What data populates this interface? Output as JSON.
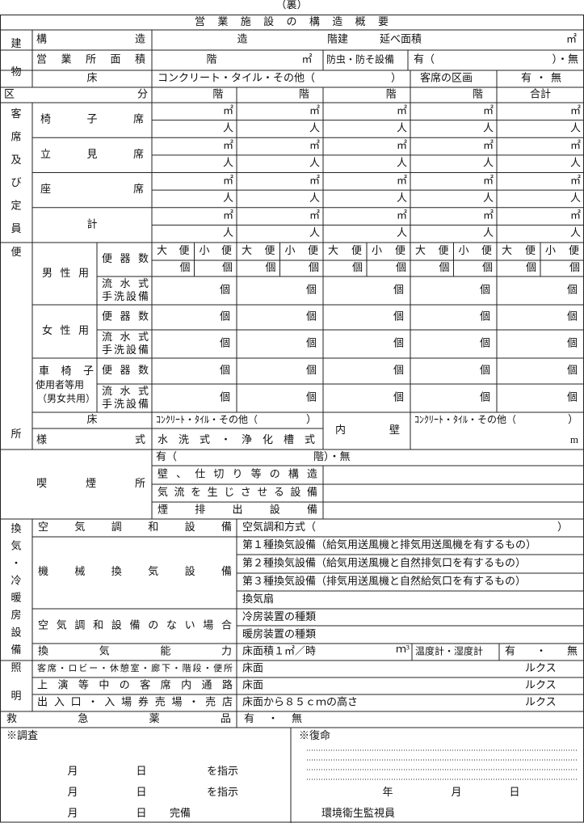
{
  "header": {
    "page_label": "（裏）",
    "title": "営業施設の構造概要"
  },
  "building": {
    "label": [
      "建",
      "物"
    ],
    "structure": "構造",
    "structure_made": "造",
    "floors": "階建",
    "total_area": "延べ面積",
    "area_unit": "㎡",
    "office_area": "営業所面積",
    "office_floor": "階",
    "office_unit": "㎡",
    "pest": "防虫・防そ設備",
    "pest_value": "有（",
    "pest_value_end": "）・無",
    "floor": "床",
    "floor_value": "コンクリート・タイル・その他（",
    "floor_value_end": "）",
    "seat_division": "客席の区画",
    "seat_division_value": "有・無"
  },
  "seating": {
    "division": "区分",
    "floor_headers": [
      "階",
      "階",
      "階",
      "階"
    ],
    "total_header": "合計",
    "label": [
      "客",
      "席",
      "及",
      "び",
      "定",
      "員"
    ],
    "rows": [
      "椅子席",
      "立見席",
      "座席",
      "計"
    ],
    "area_unit": "㎡",
    "person_unit": "人"
  },
  "toilet": {
    "label": [
      "便",
      "所"
    ],
    "male": "男性用",
    "female": "女性用",
    "wheelchair": [
      "車椅子",
      "使用者等用",
      "（男女共用）"
    ],
    "bowl_count": "便器数",
    "handwash": [
      "流水式",
      "手洗設備"
    ],
    "large": "大便",
    "small": "小便",
    "count_unit": "個",
    "floor": "床",
    "floor_value": "ｺﾝｸﾘｰﾄ・ﾀｲﾙ・その他（",
    "floor_value_end": "）",
    "inner_wall": "内壁",
    "wall_value": "ｺﾝｸﾘｰﾄ・ﾀｲﾙ・その他（",
    "wall_value_end": "）",
    "wall_unit": "m",
    "style": "様式",
    "style_value": "水洗式・浄化槽式"
  },
  "smoking": {
    "label": "喫煙所",
    "presence": "有（",
    "presence_end": "階）・無",
    "structure": "壁、仕切り等の構造",
    "airflow": "気流を生じさせる設備",
    "exhaust": "煙排出設備"
  },
  "ventilation": {
    "label": [
      "換",
      "気",
      "・",
      "冷",
      "暖",
      "房",
      "設",
      "備"
    ],
    "ac": "空気調和設備",
    "ac_method": "空気調和方式（",
    "ac_method_end": "）",
    "mechanical": "機械換気設備",
    "types": [
      "第１種換気設備（給気用送風機と排気用送風機を有するもの）",
      "第２種換気設備（給気用送風機と自然排気口を有するもの）",
      "第３種換気設備（排気用送風機と自然給気口を有するもの）"
    ],
    "fan": "換気扇",
    "no_ac": "空気調和設備のない場合",
    "cooling": "冷房装置の種類",
    "heating": "暖房装置の種類",
    "capacity": "換気能力",
    "capacity_value": "床面積１㎡／時",
    "capacity_unit": "ｍ³",
    "thermo": "温度計・湿度計",
    "thermo_value": "有・無"
  },
  "lighting": {
    "label": [
      "照",
      "明"
    ],
    "rows": [
      {
        "label": "客席・ロビー・休憩室・廊下・階段・便所",
        "value": "床面",
        "unit": "ルクス"
      },
      {
        "label": "上演等中の客席内通路",
        "value": "床面",
        "unit": "ルクス"
      },
      {
        "label": "出入口・入場券売場・売店",
        "value": "床面から８５ｃｍの高さ",
        "unit": "ルクス"
      }
    ]
  },
  "first_aid": {
    "label": "救急薬品",
    "value": "有・無"
  },
  "inspection": {
    "label": "※調査",
    "rows": [
      [
        "月",
        "日",
        "を指示"
      ],
      [
        "月",
        "日",
        "を指示"
      ],
      [
        "月",
        "日",
        "完備"
      ]
    ]
  },
  "report": {
    "label": "※復命",
    "date": [
      "年",
      "月",
      "日"
    ],
    "signer": "環境衛生監視員"
  }
}
